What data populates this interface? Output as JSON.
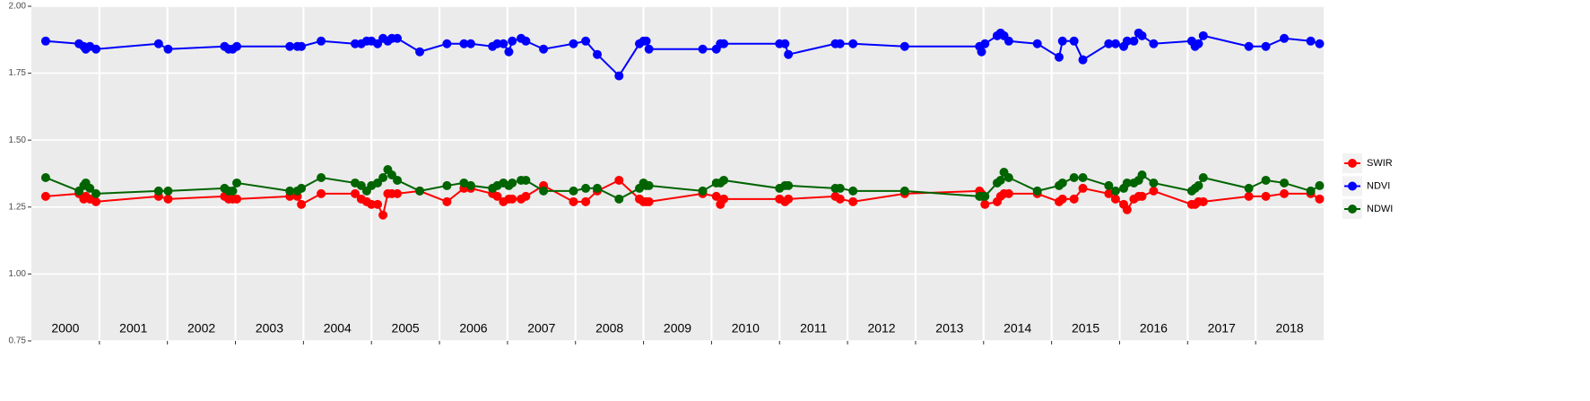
{
  "chart_data": {
    "type": "line",
    "xlim": [
      2000,
      2019
    ],
    "xticks": [
      2001,
      2002,
      2003,
      2004,
      2005,
      2006,
      2007,
      2008,
      2009,
      2010,
      2011,
      2012,
      2013,
      2014,
      2015,
      2016,
      2017,
      2018
    ],
    "year_labels": [
      {
        "value": 2000.5,
        "label": "2000"
      },
      {
        "value": 2001.5,
        "label": "2001"
      },
      {
        "value": 2002.5,
        "label": "2002"
      },
      {
        "value": 2003.5,
        "label": "2003"
      },
      {
        "value": 2004.5,
        "label": "2004"
      },
      {
        "value": 2005.5,
        "label": "2005"
      },
      {
        "value": 2006.5,
        "label": "2006"
      },
      {
        "value": 2007.5,
        "label": "2007"
      },
      {
        "value": 2008.5,
        "label": "2008"
      },
      {
        "value": 2009.5,
        "label": "2009"
      },
      {
        "value": 2010.5,
        "label": "2010"
      },
      {
        "value": 2011.5,
        "label": "2011"
      },
      {
        "value": 2012.5,
        "label": "2012"
      },
      {
        "value": 2013.5,
        "label": "2013"
      },
      {
        "value": 2014.5,
        "label": "2014"
      },
      {
        "value": 2015.5,
        "label": "2015"
      },
      {
        "value": 2016.5,
        "label": "2016"
      },
      {
        "value": 2017.5,
        "label": "2017"
      },
      {
        "value": 2018.5,
        "label": "2018"
      }
    ],
    "ylim": [
      0.75,
      2.0
    ],
    "yticks": [
      {
        "value": 0.75,
        "label": "0.75"
      },
      {
        "value": 1.0,
        "label": "1.00"
      },
      {
        "value": 1.25,
        "label": "1.25"
      },
      {
        "value": 1.5,
        "label": "1.50"
      },
      {
        "value": 1.75,
        "label": "1.75"
      },
      {
        "value": 2.0,
        "label": "2.00"
      }
    ],
    "grid": true,
    "legend": "right",
    "x": [
      2000.21,
      2000.7,
      2000.77,
      2000.8,
      2000.86,
      2000.95,
      2001.87,
      2002.01,
      2002.84,
      2002.9,
      2002.96,
      2003.02,
      2003.8,
      2003.91,
      2003.97,
      2004.26,
      2004.76,
      2004.85,
      2004.93,
      2005.0,
      2005.09,
      2005.17,
      2005.24,
      2005.3,
      2005.38,
      2005.71,
      2006.11,
      2006.36,
      2006.46,
      2006.78,
      2006.85,
      2006.94,
      2007.02,
      2007.07,
      2007.2,
      2007.27,
      2007.53,
      2007.97,
      2008.15,
      2008.32,
      2008.64,
      2008.94,
      2009.0,
      2009.04,
      2009.08,
      2009.87,
      2010.07,
      2010.13,
      2010.18,
      2011.0,
      2011.08,
      2011.13,
      2011.82,
      2011.89,
      2012.08,
      2012.84,
      2013.94,
      2013.97,
      2014.02,
      2014.2,
      2014.25,
      2014.3,
      2014.37,
      2014.79,
      2015.11,
      2015.16,
      2015.33,
      2015.46,
      2015.84,
      2015.94,
      2016.06,
      2016.11,
      2016.21,
      2016.28,
      2016.33,
      2016.5,
      2017.06,
      2017.11,
      2017.16,
      2017.23,
      2017.9,
      2018.15,
      2018.42,
      2018.81,
      2018.94
    ],
    "series": [
      {
        "name": "SWIR",
        "color": "#ff0000",
        "values": [
          1.29,
          1.3,
          1.28,
          1.29,
          1.28,
          1.27,
          1.29,
          1.28,
          1.29,
          1.28,
          1.28,
          1.28,
          1.29,
          1.29,
          1.26,
          1.3,
          1.3,
          1.28,
          1.27,
          1.26,
          1.26,
          1.22,
          1.3,
          1.3,
          1.3,
          1.31,
          1.27,
          1.32,
          1.32,
          1.3,
          1.29,
          1.27,
          1.28,
          1.28,
          1.28,
          1.29,
          1.33,
          1.27,
          1.27,
          1.31,
          1.35,
          1.28,
          1.27,
          1.27,
          1.27,
          1.3,
          1.29,
          1.26,
          1.28,
          1.28,
          1.27,
          1.28,
          1.29,
          1.28,
          1.27,
          1.3,
          1.31,
          1.3,
          1.26,
          1.27,
          1.29,
          1.3,
          1.3,
          1.3,
          1.27,
          1.28,
          1.28,
          1.32,
          1.3,
          1.28,
          1.26,
          1.24,
          1.28,
          1.29,
          1.29,
          1.31,
          1.26,
          1.26,
          1.27,
          1.27,
          1.29,
          1.29,
          1.3,
          1.3,
          1.28
        ]
      },
      {
        "name": "NDVI",
        "color": "#0000ff",
        "values": [
          1.87,
          1.86,
          1.85,
          1.84,
          1.85,
          1.84,
          1.86,
          1.84,
          1.85,
          1.84,
          1.84,
          1.85,
          1.85,
          1.85,
          1.85,
          1.87,
          1.86,
          1.86,
          1.87,
          1.87,
          1.86,
          1.88,
          1.87,
          1.88,
          1.88,
          1.83,
          1.86,
          1.86,
          1.86,
          1.85,
          1.86,
          1.86,
          1.83,
          1.87,
          1.88,
          1.87,
          1.84,
          1.86,
          1.87,
          1.82,
          1.74,
          1.86,
          1.87,
          1.87,
          1.84,
          1.84,
          1.84,
          1.86,
          1.86,
          1.86,
          1.86,
          1.82,
          1.86,
          1.86,
          1.86,
          1.85,
          1.85,
          1.83,
          1.86,
          1.89,
          1.9,
          1.89,
          1.87,
          1.86,
          1.81,
          1.87,
          1.87,
          1.8,
          1.86,
          1.86,
          1.85,
          1.87,
          1.87,
          1.9,
          1.89,
          1.86,
          1.87,
          1.85,
          1.86,
          1.89,
          1.85,
          1.85,
          1.88,
          1.87,
          1.86
        ]
      },
      {
        "name": "NDWI",
        "color": "#006400",
        "values": [
          1.36,
          1.31,
          1.33,
          1.34,
          1.32,
          1.3,
          1.31,
          1.31,
          1.32,
          1.31,
          1.31,
          1.34,
          1.31,
          1.31,
          1.32,
          1.36,
          1.34,
          1.33,
          1.31,
          1.33,
          1.34,
          1.36,
          1.39,
          1.37,
          1.35,
          1.31,
          1.33,
          1.34,
          1.33,
          1.32,
          1.33,
          1.34,
          1.33,
          1.34,
          1.35,
          1.35,
          1.31,
          1.31,
          1.32,
          1.32,
          1.28,
          1.32,
          1.34,
          1.33,
          1.33,
          1.31,
          1.34,
          1.34,
          1.35,
          1.32,
          1.33,
          1.33,
          1.32,
          1.32,
          1.31,
          1.31,
          1.29,
          1.29,
          1.29,
          1.34,
          1.35,
          1.38,
          1.36,
          1.31,
          1.33,
          1.34,
          1.36,
          1.36,
          1.33,
          1.31,
          1.32,
          1.34,
          1.34,
          1.35,
          1.37,
          1.34,
          1.31,
          1.32,
          1.33,
          1.36,
          1.32,
          1.35,
          1.34,
          1.31,
          1.33
        ]
      }
    ]
  }
}
